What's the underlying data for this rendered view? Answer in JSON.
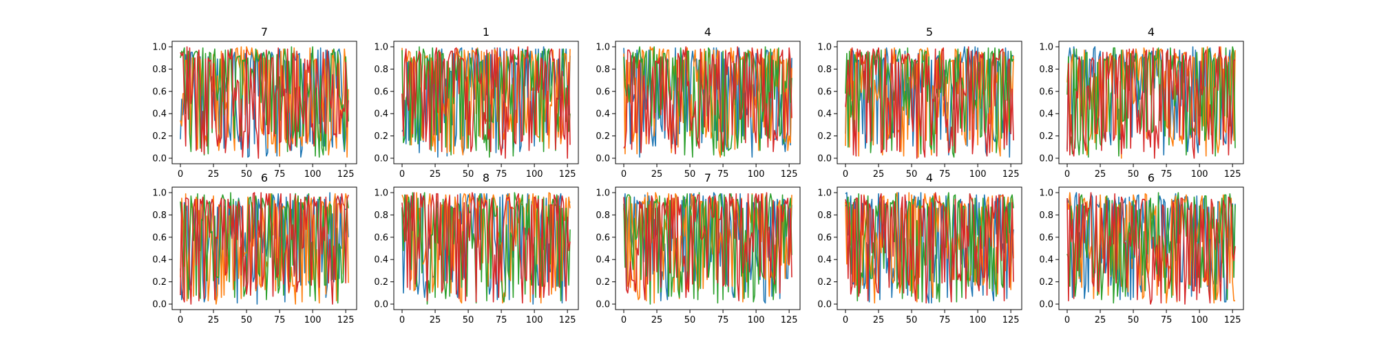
{
  "chart_data": {
    "type": "line",
    "layout": "2x5 grid of subplots",
    "grid": false,
    "legend": "none",
    "x_range": [
      0,
      127
    ],
    "ylim": [
      0.0,
      1.0
    ],
    "x_ticks": [
      "0",
      "25",
      "50",
      "75",
      "100",
      "125"
    ],
    "y_ticks": [
      "0.0",
      "0.2",
      "0.4",
      "0.6",
      "0.8",
      "1.0"
    ],
    "series_colors": [
      "#1f77b4",
      "#ff7f0e",
      "#2ca02c",
      "#d62728"
    ],
    "subplots": [
      {
        "title": "7"
      },
      {
        "title": "1"
      },
      {
        "title": "4"
      },
      {
        "title": "5"
      },
      {
        "title": "4"
      },
      {
        "title": "6"
      },
      {
        "title": "8"
      },
      {
        "title": "7"
      },
      {
        "title": "4"
      },
      {
        "title": "6"
      }
    ],
    "note_values": "Each subplot has 4 series of 128 points (x = 0..127) with values oscillating between 0.0 and 1.0."
  }
}
